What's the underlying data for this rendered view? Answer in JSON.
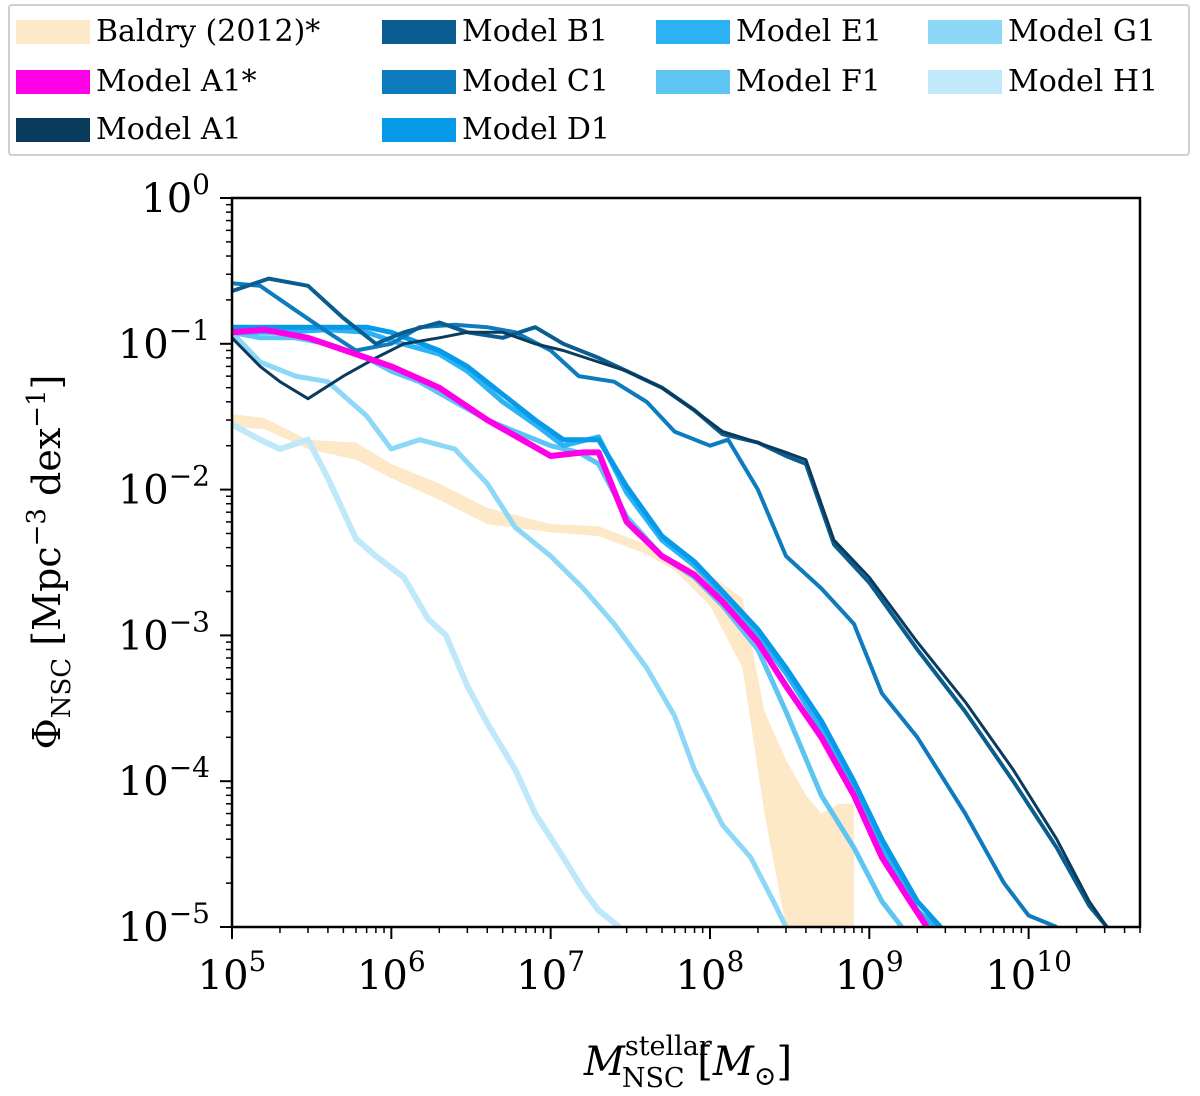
{
  "chart_data": {
    "type": "line",
    "xscale": "log",
    "yscale": "log",
    "xlim": [
      100000.0,
      50000000000.0
    ],
    "ylim": [
      1e-05,
      1
    ],
    "xlabel": "M_NSC^stellar [M_⊙]",
    "ylabel": "Φ_NSC [Mpc^-3 dex^-1]",
    "x_ticks": [
      {
        "value": 100000.0,
        "base": "10",
        "exp": "5"
      },
      {
        "value": 1000000.0,
        "base": "10",
        "exp": "6"
      },
      {
        "value": 10000000.0,
        "base": "10",
        "exp": "7"
      },
      {
        "value": 100000000.0,
        "base": "10",
        "exp": "8"
      },
      {
        "value": 1000000000.0,
        "base": "10",
        "exp": "9"
      },
      {
        "value": 10000000000.0,
        "base": "10",
        "exp": "10"
      }
    ],
    "y_ticks": [
      {
        "value": 1,
        "base": "10",
        "exp": "0"
      },
      {
        "value": 0.1,
        "base": "10",
        "exp": "−1"
      },
      {
        "value": 0.01,
        "base": "10",
        "exp": "−2"
      },
      {
        "value": 0.001,
        "base": "10",
        "exp": "−3"
      },
      {
        "value": 0.0001,
        "base": "10",
        "exp": "−4"
      },
      {
        "value": 1e-05,
        "base": "10",
        "exp": "−5"
      }
    ],
    "band": {
      "name": "Baldry (2012)",
      "marker": "*",
      "color": "#fde8c8",
      "x": [
        100000.0,
        160000.0,
        300000.0,
        600000.0,
        1000000.0,
        2000000.0,
        4000000.0,
        10000000.0,
        20000000.0,
        40000000.0,
        60000000.0,
        100000000.0,
        160000000.0,
        220000000.0,
        300000000.0,
        400000000.0,
        500000000.0,
        650000000.0,
        800000000.0
      ],
      "upper": [
        0.033,
        0.031,
        0.022,
        0.021,
        0.015,
        0.011,
        0.0075,
        0.0058,
        0.0056,
        0.0042,
        0.0033,
        0.0026,
        0.0018,
        0.0003,
        0.00014,
        8e-05,
        6e-05,
        7e-05,
        7e-05
      ],
      "lower": [
        0.027,
        0.026,
        0.019,
        0.016,
        0.012,
        0.0085,
        0.0058,
        0.0051,
        0.0048,
        0.0036,
        0.0028,
        0.0016,
        0.0006,
        6e-05,
        1e-05,
        1e-05,
        1e-05,
        1e-05,
        1e-05
      ]
    },
    "series": [
      {
        "name": "Model A1",
        "marker": "*",
        "color": "#ff00e6",
        "width": 6,
        "x": [
          100000.0,
          160000.0,
          300000.0,
          600000.0,
          1000000.0,
          2000000.0,
          4000000.0,
          10000000.0,
          16000000.0,
          20000000.0,
          30000000.0,
          50000000.0,
          80000000.0,
          120000000.0,
          200000000.0,
          300000000.0,
          500000000.0,
          800000000.0,
          1200000000.0,
          1800000000.0,
          2300000000.0
        ],
        "y": [
          0.12,
          0.125,
          0.11,
          0.085,
          0.07,
          0.05,
          0.03,
          0.017,
          0.018,
          0.018,
          0.006,
          0.0035,
          0.0026,
          0.0017,
          0.0009,
          0.00045,
          0.0002,
          8e-05,
          3e-05,
          1.5e-05,
          1e-05
        ]
      },
      {
        "name": "Model A1",
        "marker": "",
        "color": "#0a3b5c",
        "width": 3,
        "x": [
          100000.0,
          150000.0,
          200000.0,
          300000.0,
          500000.0,
          800000.0,
          1200000.0,
          2000000.0,
          3000000.0,
          5000000.0,
          8000000.0,
          12000000.0,
          20000000.0,
          30000000.0,
          50000000.0,
          80000000.0,
          120000000.0,
          200000000.0,
          300000000.0,
          400000000.0,
          600000000.0,
          1000000000.0,
          2000000000.0,
          4000000000.0,
          8000000000.0,
          15000000000.0,
          24000000000.0,
          31000000000.0
        ],
        "y": [
          0.11,
          0.07,
          0.055,
          0.042,
          0.06,
          0.08,
          0.1,
          0.11,
          0.12,
          0.12,
          0.1,
          0.09,
          0.075,
          0.065,
          0.05,
          0.035,
          0.025,
          0.021,
          0.018,
          0.016,
          0.0045,
          0.0025,
          0.0009,
          0.00035,
          0.00012,
          4e-05,
          1.5e-05,
          1e-05
        ]
      },
      {
        "name": "Model B1",
        "marker": "",
        "color": "#0a5d8f",
        "width": 4,
        "x": [
          100000.0,
          170000.0,
          300000.0,
          500000.0,
          800000.0,
          1200000.0,
          2000000.0,
          3000000.0,
          5000000.0,
          8000000.0,
          12000000.0,
          20000000.0,
          30000000.0,
          50000000.0,
          80000000.0,
          120000000.0,
          200000000.0,
          300000000.0,
          400000000.0,
          600000000.0,
          1000000000.0,
          2000000000.0,
          4000000000.0,
          8000000000.0,
          15000000000.0,
          24000000000.0,
          31000000000.0
        ],
        "y": [
          0.23,
          0.28,
          0.25,
          0.15,
          0.1,
          0.12,
          0.14,
          0.12,
          0.11,
          0.13,
          0.1,
          0.08,
          0.065,
          0.05,
          0.035,
          0.024,
          0.021,
          0.017,
          0.015,
          0.0042,
          0.0023,
          0.0008,
          0.0003,
          0.0001,
          3.5e-05,
          1.4e-05,
          1e-05
        ]
      },
      {
        "name": "Model C1",
        "marker": "",
        "color": "#0e7bbe",
        "width": 4,
        "x": [
          100000.0,
          150000.0,
          250000.0,
          400000.0,
          600000.0,
          1000000.0,
          1500000.0,
          2500000.0,
          4000000.0,
          6000000.0,
          10000000.0,
          15000000.0,
          25000000.0,
          40000000.0,
          60000000.0,
          100000000.0,
          130000000.0,
          200000000.0,
          300000000.0,
          500000000.0,
          800000000.0,
          1200000000.0,
          2000000000.0,
          4000000000.0,
          7000000000.0,
          10000000000.0,
          15000000000.0
        ],
        "y": [
          0.26,
          0.25,
          0.17,
          0.12,
          0.09,
          0.1,
          0.13,
          0.135,
          0.13,
          0.12,
          0.09,
          0.06,
          0.055,
          0.04,
          0.025,
          0.02,
          0.022,
          0.01,
          0.0035,
          0.0021,
          0.0012,
          0.0004,
          0.0002,
          6e-05,
          2e-05,
          1.2e-05,
          1e-05
        ]
      },
      {
        "name": "Model D1",
        "marker": "",
        "color": "#069ae8",
        "width": 5,
        "x": [
          100000.0,
          200000.0,
          400000.0,
          700000.0,
          1000000.0,
          2000000.0,
          3000000.0,
          5000000.0,
          8000000.0,
          12000000.0,
          20000000.0,
          30000000.0,
          50000000.0,
          80000000.0,
          120000000.0,
          200000000.0,
          300000000.0,
          500000000.0,
          800000000.0,
          1200000000.0,
          2000000000.0,
          2800000000.0
        ],
        "y": [
          0.13,
          0.13,
          0.13,
          0.13,
          0.12,
          0.09,
          0.07,
          0.045,
          0.03,
          0.022,
          0.022,
          0.0105,
          0.0048,
          0.0032,
          0.002,
          0.0011,
          0.0006,
          0.00026,
          0.0001,
          4e-05,
          1.5e-05,
          1e-05
        ]
      },
      {
        "name": "Model E1",
        "marker": "",
        "color": "#2cb3f5",
        "width": 5,
        "x": [
          100000.0,
          200000.0,
          400000.0,
          700000.0,
          1000000.0,
          2000000.0,
          3000000.0,
          5000000.0,
          8000000.0,
          12000000.0,
          20000000.0,
          30000000.0,
          50000000.0,
          80000000.0,
          120000000.0,
          200000000.0,
          300000000.0,
          500000000.0,
          800000000.0,
          1200000000.0,
          2000000000.0,
          2600000000.0
        ],
        "y": [
          0.12,
          0.12,
          0.125,
          0.12,
          0.105,
          0.085,
          0.065,
          0.04,
          0.028,
          0.02,
          0.023,
          0.0095,
          0.0045,
          0.003,
          0.0019,
          0.001,
          0.00055,
          0.00023,
          9e-05,
          3.5e-05,
          1.3e-05,
          1e-05
        ]
      },
      {
        "name": "Model F1",
        "marker": "",
        "color": "#5ec4f2",
        "width": 5,
        "x": [
          100000.0,
          150000.0,
          250000.0,
          400000.0,
          700000.0,
          1000000.0,
          1500000.0,
          2500000.0,
          4000000.0,
          6000000.0,
          10000000.0,
          15000000.0,
          20000000.0,
          30000000.0,
          50000000.0,
          80000000.0,
          120000000.0,
          200000000.0,
          300000000.0,
          500000000.0,
          800000000.0,
          1200000000.0,
          1600000000.0
        ],
        "y": [
          0.12,
          0.11,
          0.11,
          0.1,
          0.08,
          0.065,
          0.055,
          0.04,
          0.03,
          0.025,
          0.02,
          0.018,
          0.015,
          0.0065,
          0.0035,
          0.0025,
          0.0016,
          0.0008,
          0.0003,
          8e-05,
          3.5e-05,
          1.5e-05,
          1e-05
        ]
      },
      {
        "name": "Model G1",
        "marker": "",
        "color": "#8dd7f7",
        "width": 5,
        "x": [
          100000.0,
          150000.0,
          250000.0,
          400000.0,
          700000.0,
          1000000.0,
          1500000.0,
          2500000.0,
          4000000.0,
          6000000.0,
          10000000.0,
          16000000.0,
          25000000.0,
          40000000.0,
          60000000.0,
          80000000.0,
          120000000.0,
          180000000.0,
          250000000.0,
          300000000.0
        ],
        "y": [
          0.12,
          0.075,
          0.06,
          0.055,
          0.032,
          0.019,
          0.022,
          0.019,
          0.011,
          0.0055,
          0.0035,
          0.0021,
          0.0012,
          0.0006,
          0.00028,
          0.00012,
          5e-05,
          3e-05,
          1.5e-05,
          1e-05
        ]
      },
      {
        "name": "Model H1",
        "marker": "",
        "color": "#bfe8fb",
        "width": 6,
        "x": [
          100000.0,
          150000.0,
          200000.0,
          300000.0,
          400000.0,
          600000.0,
          800000.0,
          1200000.0,
          1700000.0,
          2200000.0,
          3000000.0,
          4000000.0,
          6000000.0,
          8000000.0,
          12000000.0,
          16000000.0,
          20000000.0,
          27000000.0
        ],
        "y": [
          0.028,
          0.022,
          0.019,
          0.022,
          0.012,
          0.0046,
          0.0035,
          0.0025,
          0.0013,
          0.001,
          0.00045,
          0.00025,
          0.00012,
          6e-05,
          3e-05,
          1.8e-05,
          1.3e-05,
          1e-05
        ]
      }
    ]
  },
  "legend": [
    {
      "label": "Baldry (2012)*",
      "color": "#fde8c8"
    },
    {
      "label": "Model A1*",
      "color": "#ff00e6"
    },
    {
      "label": "Model A1",
      "color": "#0a3b5c"
    },
    {
      "label": "Model B1",
      "color": "#0a5d8f"
    },
    {
      "label": "Model C1",
      "color": "#0e7bbe"
    },
    {
      "label": "Model D1",
      "color": "#069ae8"
    },
    {
      "label": "Model E1",
      "color": "#2cb3f5"
    },
    {
      "label": "Model F1",
      "color": "#5ec4f2"
    },
    {
      "label": "Model G1",
      "color": "#8dd7f7"
    },
    {
      "label": "Model H1",
      "color": "#bfe8fb"
    }
  ]
}
